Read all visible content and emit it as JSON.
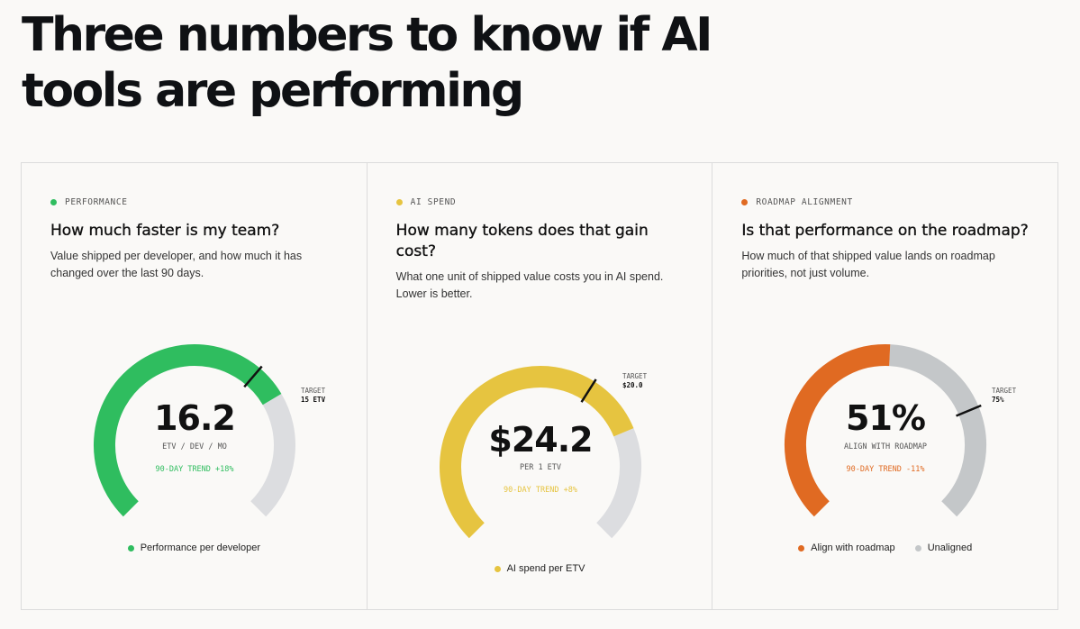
{
  "title": "Three numbers to know if AI tools are performing",
  "cards": [
    {
      "eyebrow": "PERFORMANCE",
      "color": "#2fbd5f",
      "heading": "How much faster is my team?",
      "description": "Value shipped per developer, and how much it has changed over the last 90 days.",
      "value": "16.2",
      "unit": "ETV / DEV / MO",
      "trend": "90-DAY TREND +18%",
      "target_label": "TARGET",
      "target_value": "15 ETV",
      "gauge_fraction": 0.72,
      "target_fraction": 0.65,
      "legend": [
        {
          "label": "Performance per developer",
          "color": "#2fbd5f"
        }
      ]
    },
    {
      "eyebrow": "AI SPEND",
      "color": "#e6c440",
      "heading": "How many tokens does that gain cost?",
      "description": "What one unit of shipped value costs you in AI spend. Lower is better.",
      "value": "$24.2",
      "unit": "PER 1 ETV",
      "trend": "90-DAY TREND +8%",
      "target_label": "TARGET",
      "target_value": "$20.0",
      "gauge_fraction": 0.75,
      "target_fraction": 0.62,
      "legend": [
        {
          "label": "AI spend per ETV",
          "color": "#e6c440"
        }
      ]
    },
    {
      "eyebrow": "ROADMAP ALIGNMENT",
      "color": "#e06a22",
      "heading": "Is that performance on the roadmap?",
      "description": "How much of that shipped value lands on roadmap priorities, not just volume.",
      "value": "51%",
      "unit": "ALIGN WITH ROADMAP",
      "trend": "90-DAY TREND -11%",
      "target_label": "TARGET",
      "target_value": "75%",
      "gauge_fraction": 0.51,
      "target_fraction": 0.75,
      "legend": [
        {
          "label": "Align with roadmap",
          "color": "#e06a22"
        },
        {
          "label": "Unaligned",
          "color": "#c4c7c9"
        }
      ]
    }
  ]
}
